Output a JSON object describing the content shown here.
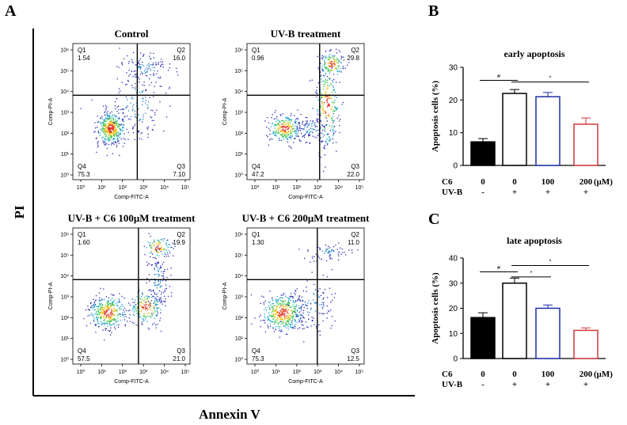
{
  "figure": {
    "panel_a_letter": "A",
    "panel_b_letter": "B",
    "panel_c_letter": "C",
    "y_axis_label": "PI",
    "x_axis_label": "Annexin V"
  },
  "colors": {
    "ink": "#000000",
    "bar_control": "#000000",
    "bar_uvb": "#ffffff",
    "bar_c6_100": "#1f2fa8",
    "bar_c6_200": "#d0383a"
  },
  "flow_axis": {
    "x_title": "Comp-FITC-A",
    "y_title": "Comp-PI-A",
    "ticks": [
      "10⁰",
      "10¹",
      "10²",
      "10³",
      "10⁴",
      "10⁵"
    ],
    "y_ticks": [
      "10⁰",
      "10¹",
      "10²",
      "10³",
      "10⁴",
      "10⁵",
      "10⁶"
    ]
  },
  "flow_plots": [
    {
      "title": "Control",
      "q1": "1.54",
      "q2": "16.0",
      "q3": "7.10",
      "q4": "75.3"
    },
    {
      "title": "UV-B treatment",
      "q1": "0.96",
      "q2": "29.8",
      "q3": "22.0",
      "q4": "47.2"
    },
    {
      "title": "UV-B + C6 100μM treatment",
      "q1": "1.60",
      "q2": "19.9",
      "q3": "21.0",
      "q4": "57.5"
    },
    {
      "title": "UV-B + C6 200μM treatment",
      "q1": "1.30",
      "q2": "11.0",
      "q3": "12.5",
      "q4": "75.3"
    }
  ],
  "quadrant_names": [
    "Q1",
    "Q2",
    "Q3",
    "Q4"
  ],
  "bar_rows": {
    "c6_label": "C6",
    "uvb_label": "UV-B",
    "unit": "(μM)",
    "c6_values": [
      "0",
      "0",
      "100",
      "200"
    ],
    "uvb_values": [
      "-",
      "+",
      "+",
      "+"
    ]
  },
  "chart_data": [
    {
      "type": "bar",
      "title": "early apoptosis",
      "ylabel": "Apoptosis cells (%)",
      "ylim": [
        0,
        30
      ],
      "yticks": [
        "0",
        "10",
        "20",
        "30"
      ],
      "categories": [
        "C6 0 / UV-B -",
        "C6 0 / UV-B +",
        "C6 100 / UV-B +",
        "C6 200 / UV-B +"
      ],
      "values": [
        7.2,
        22.0,
        21.0,
        12.6
      ],
      "errors": [
        1.0,
        1.2,
        1.3,
        1.9
      ],
      "significance": [
        {
          "from": 0,
          "to": 1,
          "label": "#"
        },
        {
          "from": 1,
          "to": 3,
          "label": "*"
        }
      ]
    },
    {
      "type": "bar",
      "title": "late apoptosis",
      "ylabel": "Apoptosis cells (%)",
      "ylim": [
        0,
        40
      ],
      "yticks": [
        "0",
        "10",
        "20",
        "30",
        "40"
      ],
      "categories": [
        "C6 0 / UV-B -",
        "C6 0 / UV-B +",
        "C6 100 / UV-B +",
        "C6 200 / UV-B +"
      ],
      "values": [
        16.3,
        30.0,
        20.0,
        11.2
      ],
      "errors": [
        1.9,
        2.0,
        1.3,
        1.0
      ],
      "significance": [
        {
          "from": 0,
          "to": 1,
          "label": "#"
        },
        {
          "from": 1,
          "to": 2,
          "label": "*"
        },
        {
          "from": 1,
          "to": 3,
          "label": "*"
        }
      ]
    }
  ]
}
